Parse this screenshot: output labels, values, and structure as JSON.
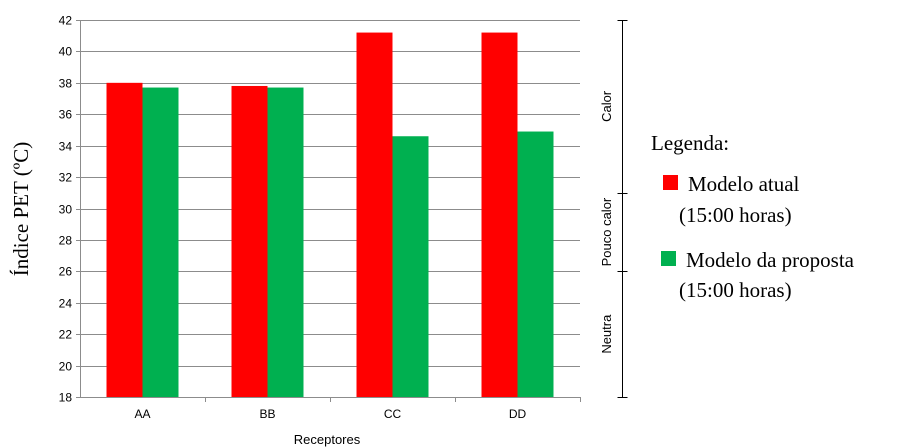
{
  "chart_data": {
    "type": "bar",
    "categories": [
      "AA",
      "BB",
      "CC",
      "DD"
    ],
    "series": [
      {
        "name": "Modelo atual",
        "name_line2": "(15:00 horas)",
        "color": "#ff0000",
        "values": [
          38.0,
          37.8,
          41.2,
          41.2
        ]
      },
      {
        "name": "Modelo da proposta",
        "name_line2": "(15:00 horas)",
        "color": "#00b050",
        "values": [
          37.7,
          37.7,
          34.6,
          34.9
        ]
      }
    ],
    "xlabel": "Receptores",
    "ylabel": "Índice PET (ºC)",
    "ylim": [
      18,
      42
    ],
    "ytick_step": 2,
    "grid": true,
    "legend_title": "Legenda:",
    "legend_position": "right",
    "zones": [
      {
        "label": "Neutra",
        "from": 18,
        "to": 26
      },
      {
        "label": "Pouco calor",
        "from": 26,
        "to": 31
      },
      {
        "label": "Calor",
        "from": 31,
        "to": 42
      }
    ]
  }
}
